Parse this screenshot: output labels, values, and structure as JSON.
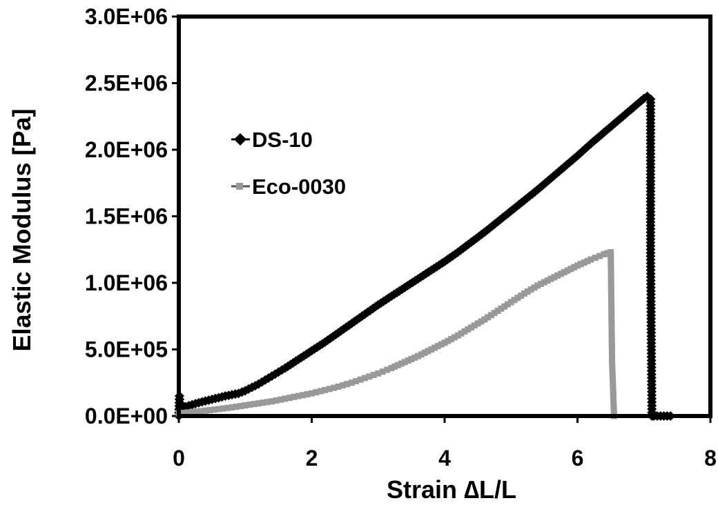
{
  "chart_data": {
    "type": "line",
    "title": "",
    "xlabel": "Strain ∆L/L",
    "ylabel": "Elastic Modulus [Pa]",
    "xlim": [
      0,
      8
    ],
    "ylim": [
      0,
      3000000
    ],
    "x_ticks": [
      0,
      2,
      4,
      6,
      8
    ],
    "x_tick_labels": [
      "0",
      "2",
      "4",
      "6",
      "8"
    ],
    "y_ticks": [
      0,
      500000,
      1000000,
      1500000,
      2000000,
      2500000,
      3000000
    ],
    "y_tick_labels": [
      "0.0E+00",
      "5.0E+05",
      "1.0E+06",
      "1.5E+06",
      "2.0E+06",
      "2.5E+06",
      "3.0E+06"
    ],
    "grid": false,
    "legend_position": "upper-left",
    "series": [
      {
        "name": "DS-10",
        "color": "#000000",
        "marker": "diamond",
        "x": [
          0,
          0.01,
          0.02,
          0.1,
          0.3,
          0.5,
          0.7,
          0.9,
          1.0,
          1.2,
          1.4,
          1.6,
          1.8,
          2.0,
          2.2,
          2.4,
          2.6,
          2.8,
          3.0,
          3.2,
          3.4,
          3.6,
          3.8,
          4.0,
          4.2,
          4.4,
          4.6,
          4.8,
          5.0,
          5.2,
          5.4,
          5.6,
          5.8,
          6.0,
          6.2,
          6.4,
          6.6,
          6.8,
          7.0,
          7.05,
          7.1,
          7.1,
          7.12,
          7.15,
          7.2,
          7.25,
          7.3,
          7.35,
          7.4
        ],
        "y": [
          0,
          150000,
          50000,
          70000,
          100000,
          125000,
          150000,
          170000,
          190000,
          240000,
          300000,
          360000,
          425000,
          490000,
          555000,
          625000,
          695000,
          765000,
          835000,
          900000,
          965000,
          1030000,
          1095000,
          1160000,
          1230000,
          1305000,
          1380000,
          1460000,
          1540000,
          1620000,
          1700000,
          1785000,
          1870000,
          1955000,
          2045000,
          2130000,
          2215000,
          2300000,
          2385000,
          2400000,
          2380000,
          1200000,
          0,
          0,
          0,
          0,
          0,
          0,
          0
        ]
      },
      {
        "name": "Eco-0030",
        "color": "#999999",
        "marker": "square",
        "x": [
          0,
          0.2,
          0.4,
          0.6,
          0.8,
          1.0,
          1.2,
          1.4,
          1.6,
          1.8,
          2.0,
          2.2,
          2.4,
          2.6,
          2.8,
          3.0,
          3.2,
          3.4,
          3.6,
          3.8,
          4.0,
          4.2,
          4.4,
          4.6,
          4.8,
          5.0,
          5.2,
          5.4,
          5.6,
          5.8,
          6.0,
          6.2,
          6.4,
          6.5,
          6.52,
          6.55
        ],
        "y": [
          20000,
          30000,
          40000,
          52000,
          65000,
          80000,
          95000,
          110000,
          130000,
          150000,
          170000,
          195000,
          220000,
          250000,
          285000,
          320000,
          360000,
          405000,
          450000,
          500000,
          550000,
          605000,
          665000,
          725000,
          790000,
          855000,
          920000,
          980000,
          1030000,
          1080000,
          1130000,
          1175000,
          1215000,
          1230000,
          410000,
          0
        ]
      }
    ]
  }
}
